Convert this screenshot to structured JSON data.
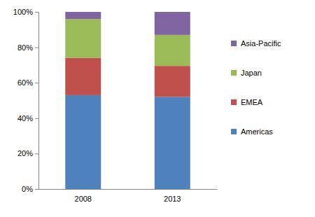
{
  "chart_data": {
    "type": "bar",
    "stacked": true,
    "legend": "right",
    "grid": false,
    "categories": [
      "2008",
      "2013"
    ],
    "series": [
      {
        "name": "Americas",
        "color": "#4f81bd",
        "values": [
          53,
          52
        ]
      },
      {
        "name": "EMEA",
        "color": "#c0504d",
        "values": [
          21,
          17.5
        ]
      },
      {
        "name": "Japan",
        "color": "#9bbb59",
        "values": [
          22,
          17.5
        ]
      },
      {
        "name": "Asia-Pacific",
        "color": "#8064a2",
        "values": [
          4,
          13
        ]
      }
    ],
    "ylim": [
      0,
      100
    ],
    "yticks": [
      {
        "value": 0,
        "label": "0%"
      },
      {
        "value": 20,
        "label": "20%"
      },
      {
        "value": 40,
        "label": "40%"
      },
      {
        "value": 60,
        "label": "60%"
      },
      {
        "value": 80,
        "label": "80%"
      },
      {
        "value": 100,
        "label": "100%"
      }
    ]
  }
}
